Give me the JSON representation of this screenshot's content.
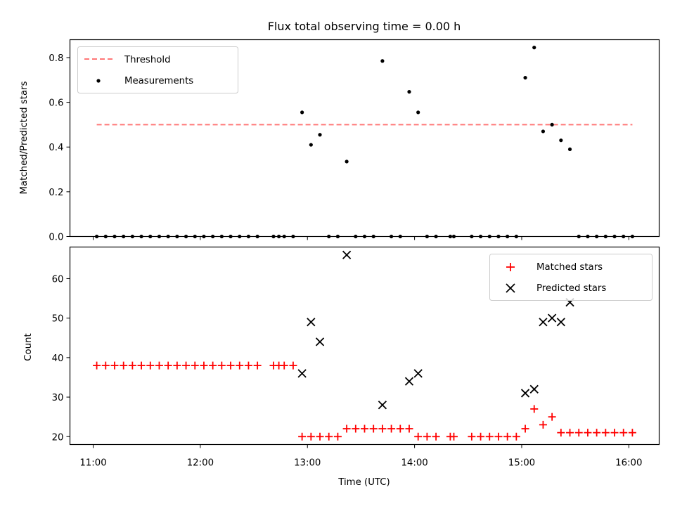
{
  "chart_data": [
    {
      "type": "scatter",
      "title": "Flux total observing time = 0.00 h",
      "ylabel": "Matched/Predicted stars",
      "xlabel": "",
      "xlim": [
        "10:47",
        "16:17"
      ],
      "ylim": [
        0,
        0.88
      ],
      "yticks": [
        0.0,
        0.2,
        0.4,
        0.6,
        0.8
      ],
      "ytick_labels": [
        "0.0",
        "0.2",
        "0.4",
        "0.6",
        "0.8"
      ],
      "legend_position": "top-left",
      "threshold": {
        "name": "Threshold",
        "value": 0.5,
        "x_range": [
          "11:02",
          "16:02"
        ],
        "color": "#ff7777",
        "style": "dashed"
      },
      "series": [
        {
          "name": "Measurements",
          "color": "#000000",
          "marker": "dot",
          "points": [
            [
              "11:02",
              0
            ],
            [
              "11:07",
              0
            ],
            [
              "11:12",
              0
            ],
            [
              "11:17",
              0
            ],
            [
              "11:22",
              0
            ],
            [
              "11:27",
              0
            ],
            [
              "11:32",
              0
            ],
            [
              "11:37",
              0
            ],
            [
              "11:42",
              0
            ],
            [
              "11:47",
              0
            ],
            [
              "11:52",
              0
            ],
            [
              "11:57",
              0
            ],
            [
              "12:02",
              0
            ],
            [
              "12:07",
              0
            ],
            [
              "12:12",
              0
            ],
            [
              "12:17",
              0
            ],
            [
              "12:22",
              0
            ],
            [
              "12:27",
              0
            ],
            [
              "12:32",
              0
            ],
            [
              "12:41",
              0
            ],
            [
              "12:44",
              0
            ],
            [
              "12:47",
              0
            ],
            [
              "12:52",
              0
            ],
            [
              "12:57",
              0.555
            ],
            [
              "13:02",
              0.41
            ],
            [
              "13:07",
              0.455
            ],
            [
              "13:12",
              0
            ],
            [
              "13:17",
              0
            ],
            [
              "13:22",
              0.335
            ],
            [
              "13:27",
              0
            ],
            [
              "13:32",
              0
            ],
            [
              "13:37",
              0
            ],
            [
              "13:42",
              0.785
            ],
            [
              "13:47",
              0
            ],
            [
              "13:52",
              0
            ],
            [
              "13:57",
              0.647
            ],
            [
              "14:02",
              0.555
            ],
            [
              "14:07",
              0
            ],
            [
              "14:12",
              0
            ],
            [
              "14:20",
              0
            ],
            [
              "14:22",
              0
            ],
            [
              "14:32",
              0
            ],
            [
              "14:37",
              0
            ],
            [
              "14:42",
              0
            ],
            [
              "14:47",
              0
            ],
            [
              "14:52",
              0
            ],
            [
              "14:57",
              0
            ],
            [
              "15:02",
              0.71
            ],
            [
              "15:07",
              0.845
            ],
            [
              "15:12",
              0.47
            ],
            [
              "15:17",
              0.5
            ],
            [
              "15:22",
              0.43
            ],
            [
              "15:27",
              0.39
            ],
            [
              "15:32",
              0
            ],
            [
              "15:37",
              0
            ],
            [
              "15:42",
              0
            ],
            [
              "15:47",
              0
            ],
            [
              "15:52",
              0
            ],
            [
              "15:57",
              0
            ],
            [
              "16:02",
              0
            ]
          ]
        }
      ]
    },
    {
      "type": "scatter",
      "title": "",
      "ylabel": "Count",
      "xlabel": "Time (UTC)",
      "xlim": [
        "10:47",
        "16:17"
      ],
      "ylim": [
        18,
        68
      ],
      "yticks": [
        20,
        30,
        40,
        50,
        60
      ],
      "ytick_labels": [
        "20",
        "30",
        "40",
        "50",
        "60"
      ],
      "xticks": [
        "11:00",
        "12:00",
        "13:00",
        "14:00",
        "15:00",
        "16:00"
      ],
      "xtick_labels": [
        "11:00",
        "12:00",
        "13:00",
        "14:00",
        "15:00",
        "16:00"
      ],
      "legend_position": "top-right",
      "series": [
        {
          "name": "Matched stars",
          "color": "#ff0000",
          "marker": "plus",
          "points": [
            [
              "11:02",
              38
            ],
            [
              "11:07",
              38
            ],
            [
              "11:12",
              38
            ],
            [
              "11:17",
              38
            ],
            [
              "11:22",
              38
            ],
            [
              "11:27",
              38
            ],
            [
              "11:32",
              38
            ],
            [
              "11:37",
              38
            ],
            [
              "11:42",
              38
            ],
            [
              "11:47",
              38
            ],
            [
              "11:52",
              38
            ],
            [
              "11:57",
              38
            ],
            [
              "12:02",
              38
            ],
            [
              "12:07",
              38
            ],
            [
              "12:12",
              38
            ],
            [
              "12:17",
              38
            ],
            [
              "12:22",
              38
            ],
            [
              "12:27",
              38
            ],
            [
              "12:32",
              38
            ],
            [
              "12:41",
              38
            ],
            [
              "12:44",
              38
            ],
            [
              "12:47",
              38
            ],
            [
              "12:52",
              38
            ],
            [
              "12:57",
              20
            ],
            [
              "13:02",
              20
            ],
            [
              "13:07",
              20
            ],
            [
              "13:12",
              20
            ],
            [
              "13:17",
              20
            ],
            [
              "13:22",
              22
            ],
            [
              "13:27",
              22
            ],
            [
              "13:32",
              22
            ],
            [
              "13:37",
              22
            ],
            [
              "13:42",
              22
            ],
            [
              "13:47",
              22
            ],
            [
              "13:52",
              22
            ],
            [
              "13:57",
              22
            ],
            [
              "14:02",
              20
            ],
            [
              "14:07",
              20
            ],
            [
              "14:12",
              20
            ],
            [
              "14:20",
              20
            ],
            [
              "14:22",
              20
            ],
            [
              "14:32",
              20
            ],
            [
              "14:37",
              20
            ],
            [
              "14:42",
              20
            ],
            [
              "14:47",
              20
            ],
            [
              "14:52",
              20
            ],
            [
              "14:57",
              20
            ],
            [
              "15:02",
              22
            ],
            [
              "15:07",
              27
            ],
            [
              "15:12",
              23
            ],
            [
              "15:17",
              25
            ],
            [
              "15:22",
              21
            ],
            [
              "15:27",
              21
            ],
            [
              "15:32",
              21
            ],
            [
              "15:37",
              21
            ],
            [
              "15:42",
              21
            ],
            [
              "15:47",
              21
            ],
            [
              "15:52",
              21
            ],
            [
              "15:57",
              21
            ],
            [
              "16:02",
              21
            ]
          ]
        },
        {
          "name": "Predicted stars",
          "color": "#000000",
          "marker": "x",
          "points": [
            [
              "12:57",
              36
            ],
            [
              "13:02",
              49
            ],
            [
              "13:07",
              44
            ],
            [
              "13:22",
              66
            ],
            [
              "13:42",
              28
            ],
            [
              "13:57",
              34
            ],
            [
              "14:02",
              36
            ],
            [
              "15:02",
              31
            ],
            [
              "15:07",
              32
            ],
            [
              "15:12",
              49
            ],
            [
              "15:17",
              50
            ],
            [
              "15:22",
              49
            ],
            [
              "15:27",
              54
            ]
          ]
        }
      ]
    }
  ]
}
